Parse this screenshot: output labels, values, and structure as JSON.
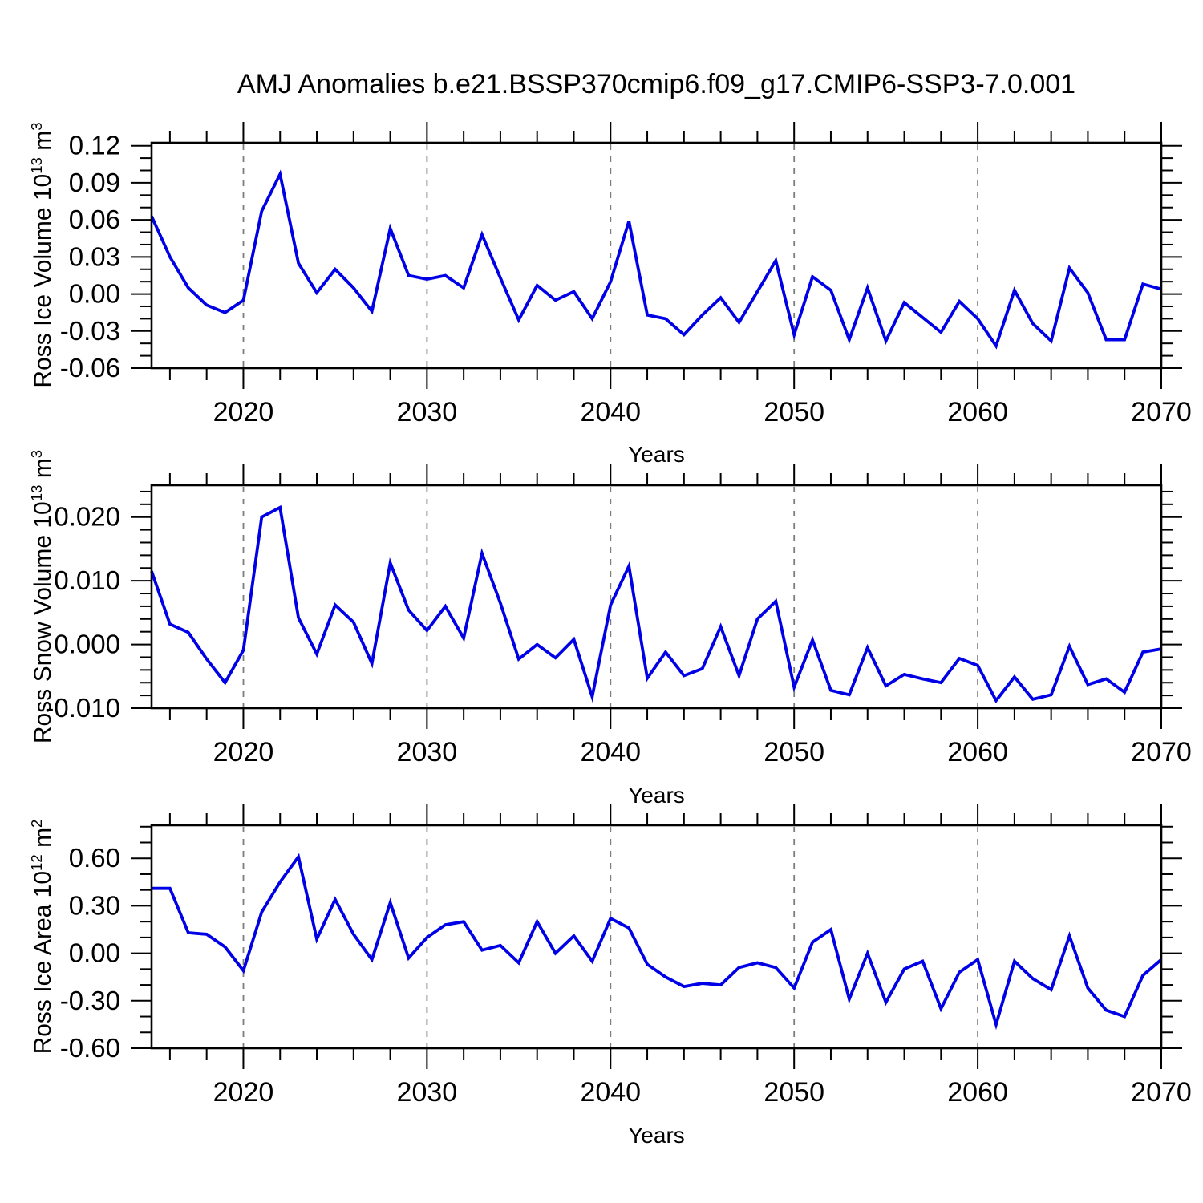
{
  "title": "AMJ Anomalies b.e21.BSSP370cmip6.f09_g17.CMIP6-SSP3-7.0.001",
  "colors": {
    "line": "#0000e6",
    "axis": "#000000",
    "grid": "#7d7d7d",
    "background": "#ffffff"
  },
  "x_axis": {
    "label": "Years",
    "xlim": [
      2015,
      2070
    ],
    "major_ticks": [
      2020,
      2030,
      2040,
      2050,
      2060,
      2070
    ],
    "major_tick_labels": [
      "2020",
      "2030",
      "2040",
      "2050",
      "2060",
      "2070"
    ],
    "minor_tick_step": 2,
    "gridline_years": [
      2020,
      2030,
      2040,
      2050,
      2060
    ]
  },
  "years": [
    2015,
    2016,
    2017,
    2018,
    2019,
    2020,
    2021,
    2022,
    2023,
    2024,
    2025,
    2026,
    2027,
    2028,
    2029,
    2030,
    2031,
    2032,
    2033,
    2034,
    2035,
    2036,
    2037,
    2038,
    2039,
    2040,
    2041,
    2042,
    2043,
    2044,
    2045,
    2046,
    2047,
    2048,
    2049,
    2050,
    2051,
    2052,
    2053,
    2054,
    2055,
    2056,
    2057,
    2058,
    2059,
    2060,
    2061,
    2062,
    2063,
    2064,
    2065,
    2066,
    2067,
    2068,
    2069,
    2070
  ],
  "chart_data": [
    {
      "id": "ross-ice-volume",
      "type": "line",
      "ylabel": {
        "pre": "Ross Ice Volume 10",
        "sup": "13",
        "mid": " m",
        "sup2": "3"
      },
      "ylim": [
        -0.06,
        0.1224
      ],
      "yticks": [
        {
          "value": 0.12,
          "label": "0.12"
        },
        {
          "value": 0.09,
          "label": "0.09"
        },
        {
          "value": 0.06,
          "label": "0.06"
        },
        {
          "value": 0.03,
          "label": "0.03"
        },
        {
          "value": 0.0,
          "label": "0.00"
        },
        {
          "value": -0.03,
          "label": "-0.03"
        },
        {
          "value": -0.06,
          "label": "-0.06"
        }
      ],
      "y_minor_step": 0.01,
      "values": [
        0.063,
        0.03,
        0.005,
        -0.009,
        -0.015,
        -0.005,
        0.067,
        0.097,
        0.025,
        0.001,
        0.02,
        0.005,
        -0.014,
        0.053,
        0.015,
        0.012,
        0.015,
        0.005,
        0.048,
        0.013,
        -0.021,
        0.007,
        -0.005,
        0.002,
        -0.02,
        0.01,
        0.059,
        -0.017,
        -0.02,
        -0.033,
        -0.017,
        -0.003,
        -0.023,
        0.002,
        0.027,
        -0.033,
        0.014,
        0.003,
        -0.037,
        0.005,
        -0.038,
        -0.007,
        -0.019,
        -0.031,
        -0.006,
        -0.02,
        -0.042,
        0.003,
        -0.024,
        -0.038,
        0.021,
        0.001,
        -0.037,
        -0.037,
        0.008,
        0.004
      ]
    },
    {
      "id": "ross-snow-volume",
      "type": "line",
      "ylabel": {
        "pre": "Ross Snow Volume 10",
        "sup": "13",
        "mid": " m",
        "sup2": "3"
      },
      "ylim": [
        -0.01,
        0.025
      ],
      "yticks": [
        {
          "value": 0.02,
          "label": "0.020"
        },
        {
          "value": 0.01,
          "label": "0.010"
        },
        {
          "value": 0.0,
          "label": "0.000"
        },
        {
          "value": -0.01,
          "label": "-0.010"
        }
      ],
      "y_minor_step": 0.002,
      "values": [
        0.0115,
        0.0032,
        0.0019,
        -0.0023,
        -0.006,
        -0.0009,
        0.02,
        0.0215,
        0.0042,
        -0.0015,
        0.0062,
        0.0035,
        -0.003,
        0.0128,
        0.0054,
        0.0022,
        0.006,
        0.001,
        0.0143,
        0.0065,
        -0.0023,
        0.0,
        -0.0021,
        0.0008,
        -0.0082,
        0.0062,
        0.0123,
        -0.0053,
        -0.0012,
        -0.0049,
        -0.0038,
        0.0028,
        -0.0049,
        0.004,
        0.0068,
        -0.0067,
        0.0007,
        -0.0072,
        -0.0079,
        -0.0005,
        -0.0065,
        -0.0047,
        -0.0054,
        -0.006,
        -0.0022,
        -0.0033,
        -0.0088,
        -0.0051,
        -0.0086,
        -0.0079,
        -0.0003,
        -0.0063,
        -0.0054,
        -0.0075,
        -0.0012,
        -0.0007
      ]
    },
    {
      "id": "ross-ice-area",
      "type": "line",
      "ylabel": {
        "pre": "Ross Ice Area 10",
        "sup": "12",
        "mid": " m",
        "sup2": "2"
      },
      "ylim": [
        -0.6,
        0.809
      ],
      "yticks": [
        {
          "value": 0.6,
          "label": "0.60"
        },
        {
          "value": 0.3,
          "label": "0.30"
        },
        {
          "value": 0.0,
          "label": "0.00"
        },
        {
          "value": -0.3,
          "label": "-0.30"
        },
        {
          "value": -0.6,
          "label": "-0.60"
        }
      ],
      "y_minor_step": 0.1,
      "values": [
        0.41,
        0.41,
        0.13,
        0.12,
        0.04,
        -0.11,
        0.26,
        0.45,
        0.61,
        0.09,
        0.34,
        0.12,
        -0.04,
        0.32,
        -0.03,
        0.1,
        0.18,
        0.2,
        0.02,
        0.05,
        -0.06,
        0.2,
        0.0,
        0.11,
        -0.05,
        0.22,
        0.16,
        -0.07,
        -0.15,
        -0.21,
        -0.19,
        -0.2,
        -0.09,
        -0.06,
        -0.09,
        -0.22,
        0.07,
        0.15,
        -0.29,
        0.0,
        -0.31,
        -0.1,
        -0.05,
        -0.35,
        -0.12,
        -0.04,
        -0.45,
        -0.05,
        -0.16,
        -0.23,
        0.11,
        -0.22,
        -0.36,
        -0.4,
        -0.14,
        -0.04
      ]
    }
  ]
}
